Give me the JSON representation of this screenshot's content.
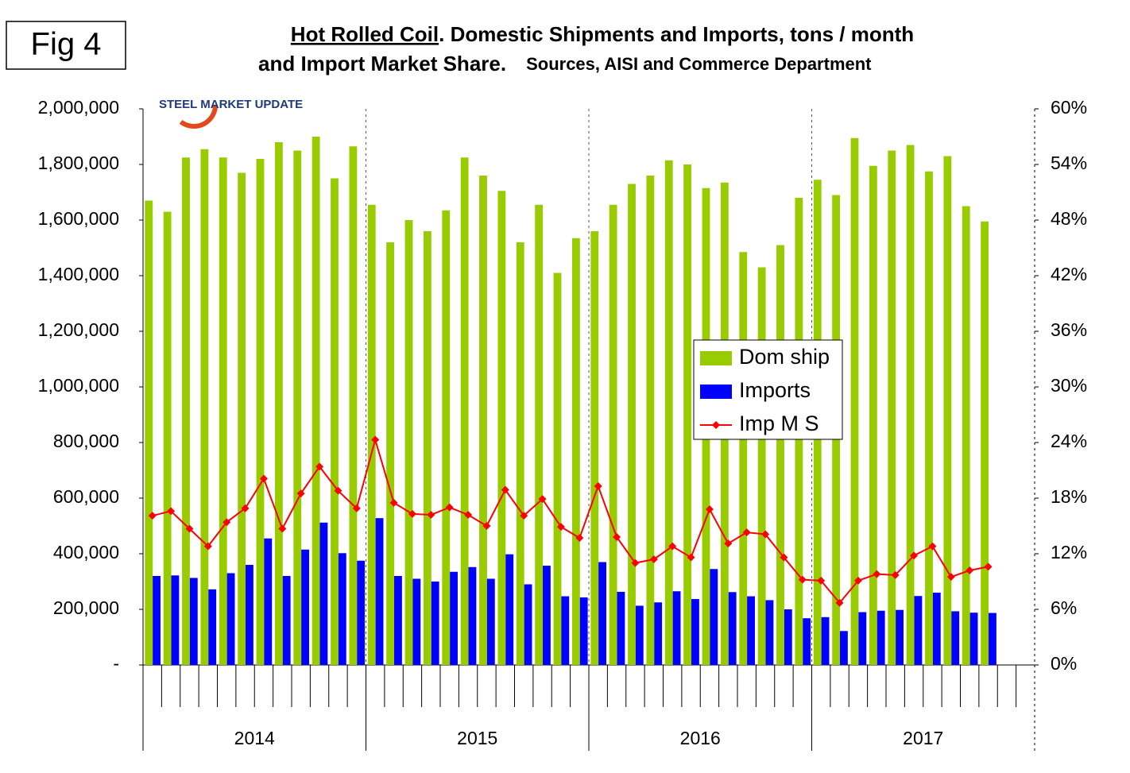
{
  "figure_label": "Fig 4",
  "logo": "STEEL MARKET UPDATE",
  "chart_data": {
    "type": "bar",
    "title": "Hot Rolled Coil",
    "title_rest": ". Domestic Shipments and Imports, tons / month",
    "subtitle": "and Import Market Share.",
    "source": "Sources, AISI and Commerce Department",
    "categories": [
      null,
      null,
      null,
      null,
      null,
      null,
      null,
      null,
      null,
      null,
      null,
      null,
      null,
      null,
      null,
      null,
      null,
      null,
      null,
      null,
      null,
      null,
      null,
      null,
      null,
      null,
      null,
      null,
      null,
      null,
      null,
      null,
      null,
      null,
      null,
      null,
      null,
      null,
      null,
      null,
      null,
      null,
      null,
      null,
      null,
      null,
      null,
      null
    ],
    "year_labels": [
      "2014",
      "2015",
      "2016",
      "2017"
    ],
    "series": [
      {
        "name": "Dom ship",
        "color": "#99cc00",
        "type": "bar",
        "values": [
          1670000,
          1630000,
          1825000,
          1855000,
          1825000,
          1770000,
          1820000,
          1880000,
          1850000,
          1900000,
          1750000,
          1865000,
          1655000,
          1520000,
          1600000,
          1560000,
          1635000,
          1825000,
          1760000,
          1705000,
          1520000,
          1655000,
          1410000,
          1535000,
          1560000,
          1655000,
          1730000,
          1760000,
          1815000,
          1800000,
          1715000,
          1735000,
          1485000,
          1430000,
          1510000,
          1680000,
          1745000,
          1690000,
          1895000,
          1795000,
          1850000,
          1870000,
          1775000,
          1830000,
          1650000,
          1595000,
          null,
          null
        ]
      },
      {
        "name": "Imports",
        "color": "#0000ff",
        "type": "bar",
        "values": [
          320000,
          322000,
          313000,
          272000,
          330000,
          360000,
          455000,
          320000,
          415000,
          512000,
          402000,
          375000,
          528000,
          320000,
          310000,
          300000,
          335000,
          352000,
          310000,
          398000,
          290000,
          357000,
          247000,
          243000,
          370000,
          263000,
          213000,
          225000,
          265000,
          237000,
          345000,
          262000,
          247000,
          233000,
          200000,
          168000,
          172000,
          122000,
          190000,
          195000,
          198000,
          248000,
          260000,
          193000,
          188000,
          187000,
          null,
          null
        ]
      },
      {
        "name": "Imp M S",
        "color": "#ff0000",
        "type": "line",
        "axis": "y2",
        "values": [
          16.1,
          16.6,
          14.7,
          12.8,
          15.4,
          16.9,
          20.1,
          14.7,
          18.5,
          21.4,
          18.8,
          16.9,
          24.3,
          17.5,
          16.3,
          16.2,
          17.0,
          16.2,
          15.0,
          18.9,
          16.1,
          17.9,
          14.9,
          13.7,
          19.3,
          13.8,
          11.0,
          11.4,
          12.8,
          11.6,
          16.8,
          13.1,
          14.3,
          14.1,
          11.6,
          9.2,
          9.1,
          6.7,
          9.1,
          9.8,
          9.7,
          11.8,
          12.8,
          9.5,
          10.2,
          10.6,
          null,
          null
        ]
      }
    ],
    "ylim": [
      0,
      2000000
    ],
    "yticks": [
      {
        "value": 0,
        "label": "-"
      },
      {
        "value": 200000,
        "label": "200,000"
      },
      {
        "value": 400000,
        "label": "400,000"
      },
      {
        "value": 600000,
        "label": "600,000"
      },
      {
        "value": 800000,
        "label": "800,000"
      },
      {
        "value": 1000000,
        "label": "1,000,000"
      },
      {
        "value": 1200000,
        "label": "1,200,000"
      },
      {
        "value": 1400000,
        "label": "1,400,000"
      },
      {
        "value": 1600000,
        "label": "1,600,000"
      },
      {
        "value": 1800000,
        "label": "1,800,000"
      },
      {
        "value": 2000000,
        "label": "2,000,000"
      }
    ],
    "y2lim": [
      0,
      60
    ],
    "y2ticks": [
      {
        "value": 0,
        "label": "0%"
      },
      {
        "value": 6,
        "label": "6%"
      },
      {
        "value": 12,
        "label": "12%"
      },
      {
        "value": 18,
        "label": "18%"
      },
      {
        "value": 24,
        "label": "24%"
      },
      {
        "value": 30,
        "label": "30%"
      },
      {
        "value": 36,
        "label": "36%"
      },
      {
        "value": 42,
        "label": "42%"
      },
      {
        "value": 48,
        "label": "48%"
      },
      {
        "value": 54,
        "label": "54%"
      },
      {
        "value": 60,
        "label": "60%"
      }
    ],
    "grid": false,
    "legend": "center-right"
  }
}
